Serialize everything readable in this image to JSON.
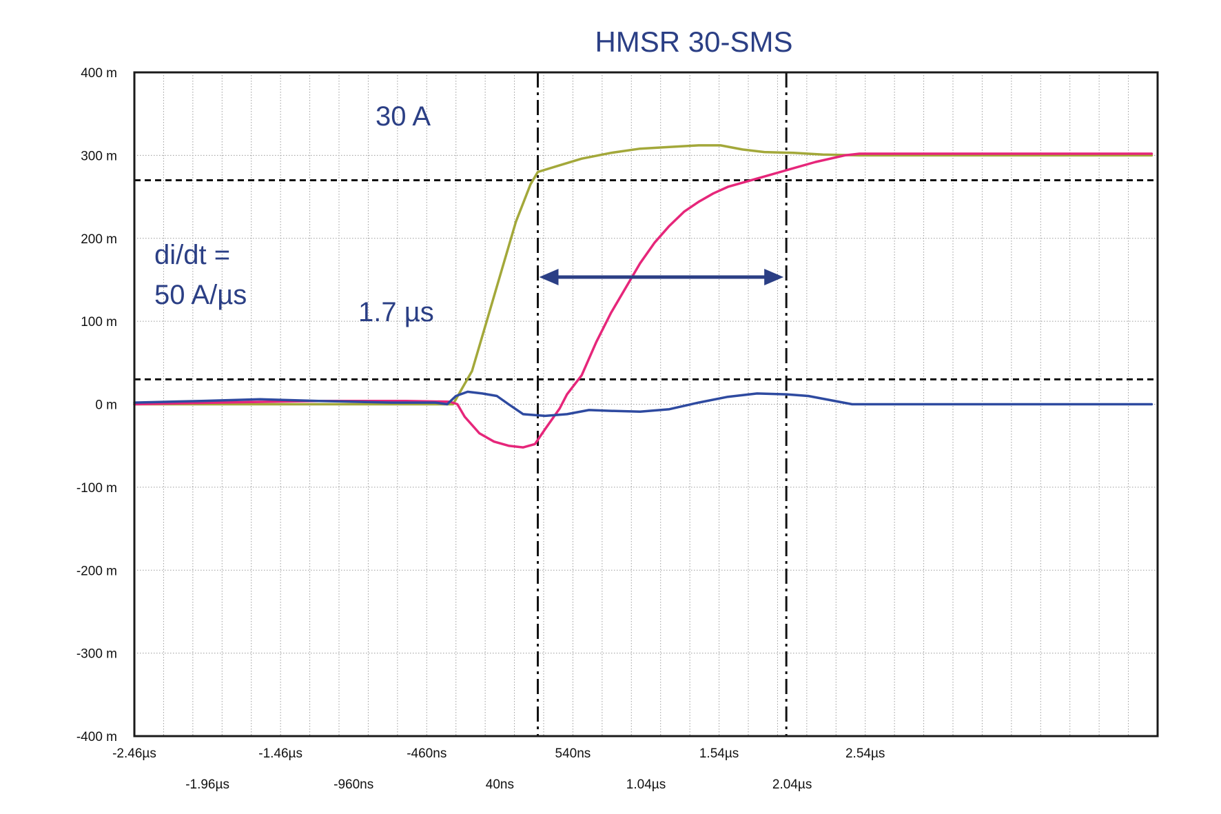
{
  "chart_data": {
    "type": "line",
    "title": "HMSR 30-SMS",
    "xlabel": "",
    "ylabel": "",
    "ylim": [
      -0.4,
      0.4
    ],
    "xlim": [
      -2.46,
      4.54
    ],
    "grid": true,
    "legend": "none",
    "y_ticks": [
      {
        "value": 0.4,
        "label": "400 m"
      },
      {
        "value": 0.3,
        "label": "300 m"
      },
      {
        "value": 0.2,
        "label": "200 m"
      },
      {
        "value": 0.1,
        "label": "100 m"
      },
      {
        "value": 0.0,
        "label": "0 m"
      },
      {
        "value": -0.1,
        "label": "-100 m"
      },
      {
        "value": -0.2,
        "label": "-200 m"
      },
      {
        "value": -0.3,
        "label": "-300 m"
      },
      {
        "value": -0.4,
        "label": "-400 m"
      }
    ],
    "x_ticks_row1": [
      {
        "value": -2.46,
        "label": "-2.46µs"
      },
      {
        "value": -1.46,
        "label": "-1.46µs"
      },
      {
        "value": -0.46,
        "label": "-460ns"
      },
      {
        "value": 0.54,
        "label": "540ns"
      },
      {
        "value": 1.54,
        "label": "1.54µs"
      },
      {
        "value": 2.54,
        "label": "2.54µs"
      }
    ],
    "x_ticks_row2": [
      {
        "value": -1.96,
        "label": "-1.96µs"
      },
      {
        "value": -0.96,
        "label": "-960ns"
      },
      {
        "value": 0.04,
        "label": "40ns"
      },
      {
        "value": 1.04,
        "label": "1.04µs"
      },
      {
        "value": 2.04,
        "label": "2.04µs"
      }
    ],
    "series": [
      {
        "color": "#a3a83a",
        "points": [
          [
            -2.46,
            0.0
          ],
          [
            -1.9,
            0.0
          ],
          [
            -1.2,
            0.0
          ],
          [
            -0.6,
            0.0
          ],
          [
            -0.28,
            0.0
          ],
          [
            -0.15,
            0.04
          ],
          [
            -0.05,
            0.1
          ],
          [
            0.05,
            0.16
          ],
          [
            0.15,
            0.22
          ],
          [
            0.25,
            0.265
          ],
          [
            0.3,
            0.28
          ],
          [
            0.45,
            0.288
          ],
          [
            0.6,
            0.296
          ],
          [
            0.8,
            0.303
          ],
          [
            1.0,
            0.308
          ],
          [
            1.2,
            0.31
          ],
          [
            1.4,
            0.312
          ],
          [
            1.55,
            0.312
          ],
          [
            1.7,
            0.307
          ],
          [
            1.85,
            0.304
          ],
          [
            2.05,
            0.303
          ],
          [
            2.25,
            0.301
          ],
          [
            2.5,
            0.3
          ],
          [
            3.0,
            0.3
          ],
          [
            4.0,
            0.3
          ],
          [
            4.5,
            0.3
          ]
        ]
      },
      {
        "color": "#e6267a",
        "points": [
          [
            -2.46,
            0.0
          ],
          [
            -1.9,
            0.002
          ],
          [
            -1.2,
            0.004
          ],
          [
            -0.6,
            0.004
          ],
          [
            -0.3,
            0.003
          ],
          [
            -0.25,
            0.0
          ],
          [
            -0.2,
            -0.015
          ],
          [
            -0.1,
            -0.035
          ],
          [
            0.0,
            -0.045
          ],
          [
            0.1,
            -0.05
          ],
          [
            0.2,
            -0.052
          ],
          [
            0.28,
            -0.048
          ],
          [
            0.35,
            -0.03
          ],
          [
            0.45,
            -0.005
          ],
          [
            0.5,
            0.012
          ],
          [
            0.6,
            0.035
          ],
          [
            0.7,
            0.075
          ],
          [
            0.8,
            0.11
          ],
          [
            0.9,
            0.14
          ],
          [
            1.0,
            0.17
          ],
          [
            1.1,
            0.195
          ],
          [
            1.2,
            0.215
          ],
          [
            1.3,
            0.232
          ],
          [
            1.4,
            0.244
          ],
          [
            1.5,
            0.254
          ],
          [
            1.6,
            0.262
          ],
          [
            1.8,
            0.272
          ],
          [
            2.0,
            0.282
          ],
          [
            2.2,
            0.292
          ],
          [
            2.4,
            0.3
          ],
          [
            2.5,
            0.302
          ],
          [
            3.0,
            0.302
          ],
          [
            4.0,
            0.302
          ],
          [
            4.5,
            0.302
          ]
        ]
      },
      {
        "color": "#2e4aa0",
        "points": [
          [
            -2.46,
            0.002
          ],
          [
            -2.0,
            0.004
          ],
          [
            -1.6,
            0.006
          ],
          [
            -1.2,
            0.004
          ],
          [
            -0.7,
            0.002
          ],
          [
            -0.4,
            0.002
          ],
          [
            -0.32,
            0.0
          ],
          [
            -0.26,
            0.01
          ],
          [
            -0.18,
            0.015
          ],
          [
            -0.08,
            0.013
          ],
          [
            0.02,
            0.01
          ],
          [
            0.1,
            0.0
          ],
          [
            0.2,
            -0.012
          ],
          [
            0.35,
            -0.014
          ],
          [
            0.5,
            -0.012
          ],
          [
            0.65,
            -0.007
          ],
          [
            0.8,
            -0.008
          ],
          [
            1.0,
            -0.009
          ],
          [
            1.2,
            -0.006
          ],
          [
            1.4,
            0.002
          ],
          [
            1.6,
            0.009
          ],
          [
            1.8,
            0.013
          ],
          [
            2.0,
            0.012
          ],
          [
            2.15,
            0.01
          ],
          [
            2.3,
            0.005
          ],
          [
            2.45,
            0.0
          ],
          [
            2.6,
            0.0
          ],
          [
            3.5,
            0.0
          ],
          [
            4.5,
            0.0
          ]
        ]
      }
    ],
    "markers": {
      "horizontal_dashed": [
        0.27,
        0.03
      ],
      "vertical_dashdot": [
        0.3,
        2.0
      ]
    },
    "annotations": {
      "current": "30 A",
      "didt_line1": "di/dt =",
      "didt_line2": "50 A/µs",
      "delay": "1.7 µs"
    }
  }
}
